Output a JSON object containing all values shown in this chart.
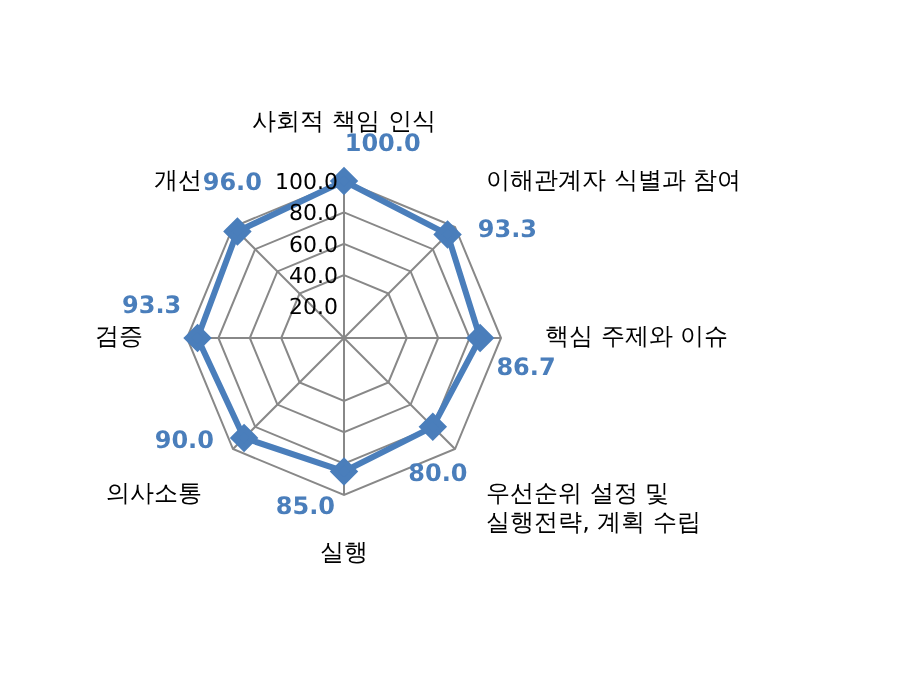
{
  "chart_data": {
    "type": "radar",
    "categories": [
      "사회적 책임 인식",
      "이해관계자 식별과 참여",
      "핵심 주제와 이슈",
      "우선순위 설정 및\n실행전략, 계획 수립",
      "실행",
      "의사소통",
      "검증",
      "개선"
    ],
    "series": [
      {
        "color": "#4a7ebb",
        "values": [
          100,
          93.3,
          86.7,
          80,
          85,
          90,
          93.3,
          96
        ],
        "value_labels": [
          "100.0",
          "93.3",
          "86.7",
          "80.0",
          "85.0",
          "90.0",
          "93.3",
          "96.0"
        ]
      }
    ],
    "ylim": [
      0,
      100
    ],
    "yticks": [
      {
        "value": 20,
        "label": "20.0"
      },
      {
        "value": 40,
        "label": "40.0"
      },
      {
        "value": 60,
        "label": "60.0"
      },
      {
        "value": 80,
        "label": "80.0"
      },
      {
        "value": 100,
        "label": "100.0"
      }
    ],
    "grid": true,
    "legend": false,
    "marker": "diamond",
    "line_style": "solid"
  }
}
